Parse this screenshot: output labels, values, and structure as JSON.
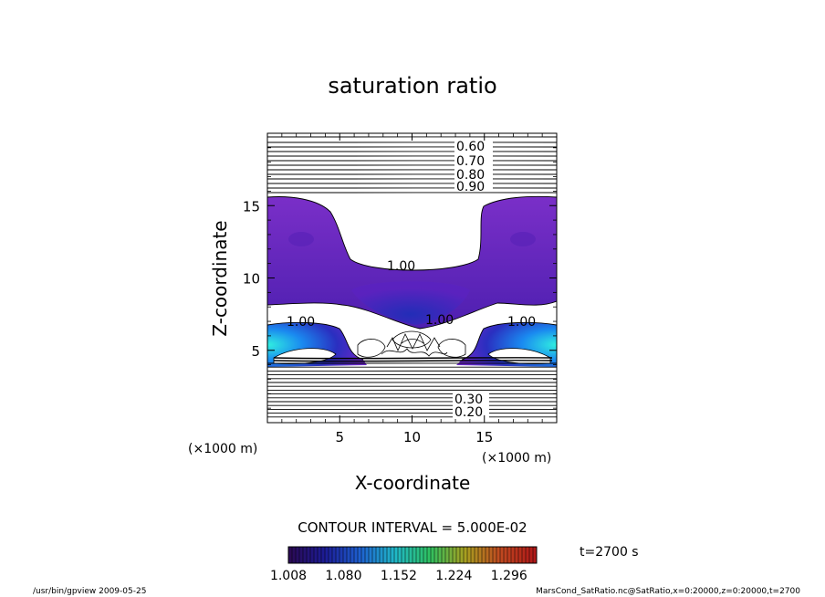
{
  "chart_data": {
    "type": "heatmap",
    "title": "saturation ratio",
    "xlabel": "X-coordinate",
    "ylabel": "Z-coordinate",
    "x_unit": "(×1000 m)",
    "z_unit": "(×1000 m)",
    "xlim": [
      0,
      20
    ],
    "ylim": [
      0,
      20
    ],
    "x_ticks": [
      5,
      10,
      15
    ],
    "y_ticks": [
      5,
      10,
      15
    ],
    "contour_labels_upper": [
      "0.60",
      "0.70",
      "0.80",
      "0.90"
    ],
    "contour_labels_saturation": [
      "1.00",
      "1.00",
      "1.00",
      "1.00"
    ],
    "contour_labels_lower": [
      "0.30",
      "0.20"
    ],
    "contour_interval_text": "CONTOUR INTERVAL = 5.000E-02",
    "colorbar": {
      "ticks": [
        "1.008",
        "1.080",
        "1.152",
        "1.224",
        "1.296"
      ],
      "min": 1.008,
      "max": 1.332,
      "colors": [
        "#2a0a55",
        "#1c1c96",
        "#1e60d0",
        "#20b8c8",
        "#2ec060",
        "#a8a020",
        "#c04a20",
        "#b01818"
      ]
    },
    "time_label": "t=2700 s",
    "footer_left": "/usr/bin/gpview   2009-05-25",
    "footer_right": "MarsCond_SatRatio.nc@SatRatio,x=0:20000,z=0:20000,t=2700"
  }
}
